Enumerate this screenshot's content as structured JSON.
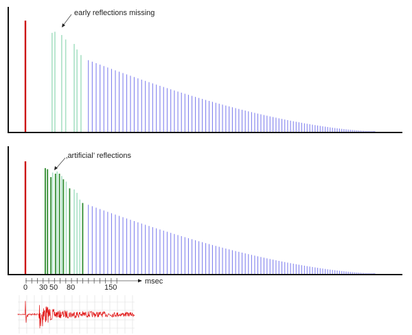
{
  "colors": {
    "direct": "#cc1111",
    "early_missing": "#a8e0c4",
    "artificial": "#2e8b2e",
    "early_light": "#a8e0c4",
    "late": "#8080ee",
    "axis": "#111111",
    "waveform": "#e01010",
    "grid": "#dddddd"
  },
  "chart_data": [
    {
      "type": "bar",
      "title": "",
      "annotation": "early reflections missing",
      "xlabel": "msec",
      "direct": {
        "t": 0,
        "a": 1.0
      },
      "early": [
        {
          "t": 47,
          "a": 0.89
        },
        {
          "t": 52,
          "a": 0.9
        },
        {
          "t": 64,
          "a": 0.87
        },
        {
          "t": 71,
          "a": 0.83
        },
        {
          "t": 86,
          "a": 0.79
        },
        {
          "t": 91,
          "a": 0.74
        },
        {
          "t": 98,
          "a": 0.69
        }
      ],
      "late": {
        "t_start": 111,
        "t_end": 616,
        "a_start": 0.64,
        "a_end": 0.0,
        "count": 100
      }
    },
    {
      "type": "bar",
      "title": "",
      "annotation": "‚artificial’ reflections",
      "xlabel": "msec",
      "direct": {
        "t": 0,
        "a": 1.0
      },
      "artificial": [
        {
          "t": 35,
          "a": 0.94
        },
        {
          "t": 39,
          "a": 0.93
        },
        {
          "t": 45,
          "a": 0.86
        },
        {
          "t": 53,
          "a": 0.89
        },
        {
          "t": 60,
          "a": 0.89
        },
        {
          "t": 67,
          "a": 0.84
        },
        {
          "t": 78,
          "a": 0.76
        },
        {
          "t": 101,
          "a": 0.63
        }
      ],
      "early": [
        {
          "t": 48,
          "a": 0.9
        },
        {
          "t": 56,
          "a": 0.91
        },
        {
          "t": 64,
          "a": 0.87
        },
        {
          "t": 72,
          "a": 0.82
        },
        {
          "t": 86,
          "a": 0.75
        },
        {
          "t": 91,
          "a": 0.72
        },
        {
          "t": 96,
          "a": 0.66
        }
      ],
      "late": {
        "t_start": 111,
        "t_end": 616,
        "a_start": 0.61,
        "a_end": 0.0,
        "count": 100
      }
    }
  ],
  "axis": {
    "ticks": [
      "0",
      "30",
      "50",
      "80",
      "150"
    ],
    "tick_values": [
      0,
      30,
      50,
      80,
      150
    ],
    "minor_step": 10,
    "minor_max": 160,
    "unit": "msec"
  },
  "waveform": {
    "label": "impulse-response-waveform"
  }
}
